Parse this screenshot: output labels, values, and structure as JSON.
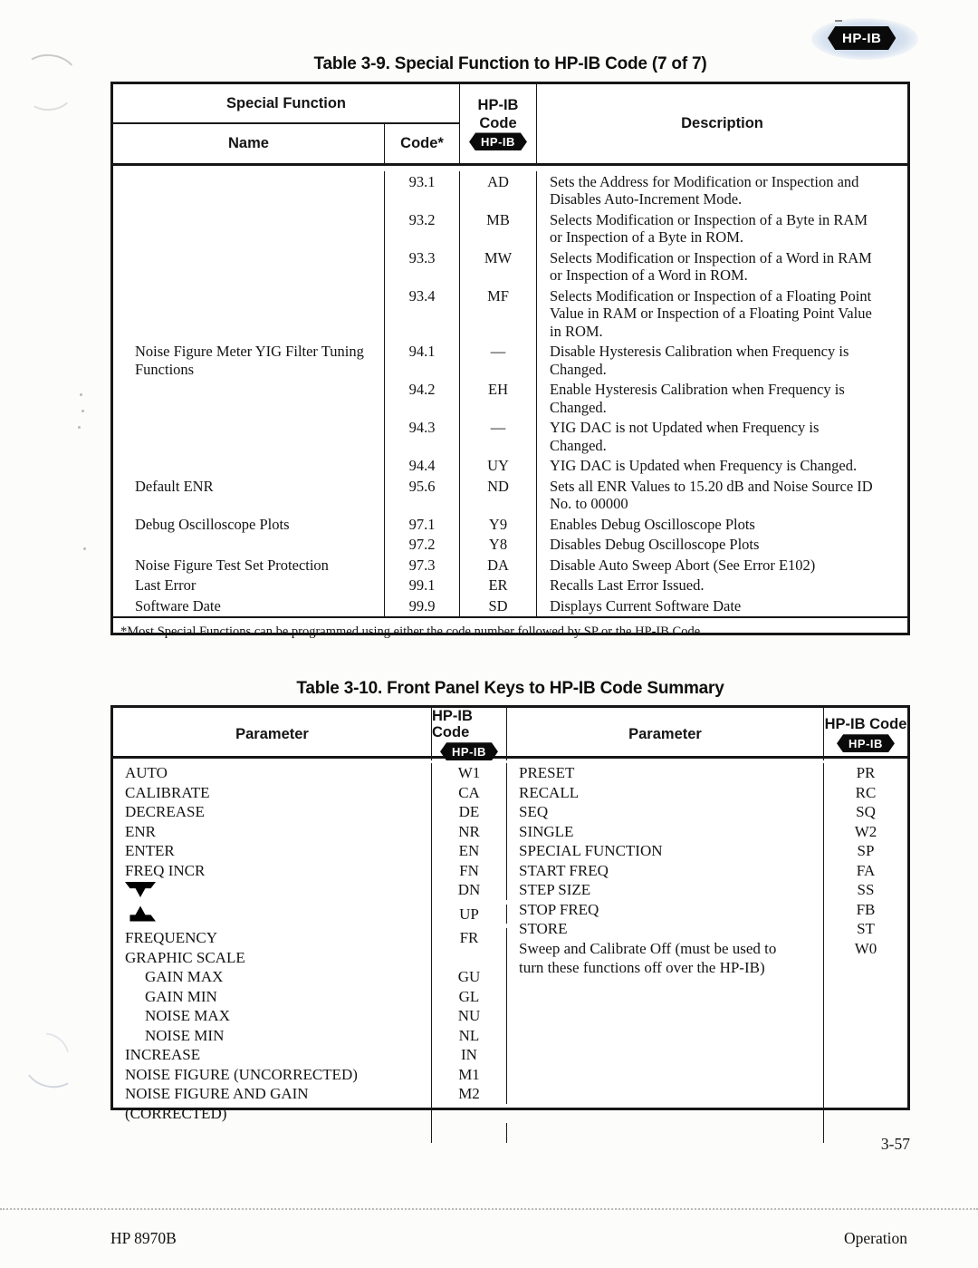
{
  "page": {
    "corner_badge_label": "HP-IB",
    "page_number": "3-57",
    "footer_left": "HP 8970B",
    "footer_right": "Operation"
  },
  "table_3_9": {
    "title": "Table 3-9.  Special Function to HP-IB Code (7 of 7)",
    "headers": {
      "special_function": "Special Function",
      "name": "Name",
      "code": "Code*",
      "hpib_line1": "HP-IB",
      "hpib_line2": "Code",
      "hpib_badge_label": "HP-IB",
      "description": "Description"
    },
    "rows": [
      {
        "name": "",
        "code": "93.1",
        "hpib_code": "AD",
        "description": "Sets the Address for Modification or Inspection and Disables Auto-Increment Mode."
      },
      {
        "name": "",
        "code": "93.2",
        "hpib_code": "MB",
        "description": "Selects Modification or Inspection of a Byte in RAM or Inspection of a Byte in ROM."
      },
      {
        "name": "",
        "code": "93.3",
        "hpib_code": "MW",
        "description": "Selects Modification or Inspection of a Word in RAM or Inspection of a Word in ROM."
      },
      {
        "name": "",
        "code": "93.4",
        "hpib_code": "MF",
        "description": "Selects Modification or Inspection of a Floating Point Value in RAM or Inspection of a Floating Point Value in ROM."
      },
      {
        "name": "Noise Figure Meter YIG Filter Tuning Functions",
        "code": "94.1",
        "hpib_code": "—",
        "description": "Disable Hysteresis Calibration when Frequency is Changed."
      },
      {
        "name": "",
        "code": "94.2",
        "hpib_code": "EH",
        "description": "Enable Hysteresis Calibration when Frequency is Changed."
      },
      {
        "name": "",
        "code": "94.3",
        "hpib_code": "—",
        "description": "YIG DAC is not Updated when Frequency is Changed."
      },
      {
        "name": "",
        "code": "94.4",
        "hpib_code": "UY",
        "description": "YIG DAC is Updated when Frequency is Changed."
      },
      {
        "name": "Default ENR",
        "code": "95.6",
        "hpib_code": "ND",
        "description": "Sets all ENR Values to 15.20 dB and Noise Source ID No. to 00000"
      },
      {
        "name": "Debug Oscilloscope Plots",
        "code": "97.1",
        "hpib_code": "Y9",
        "description": "Enables Debug Oscilloscope Plots"
      },
      {
        "name": "",
        "code": "97.2",
        "hpib_code": "Y8",
        "description": "Disables Debug Oscilloscope Plots"
      },
      {
        "name": "Noise Figure Test Set Protection",
        "code": "97.3",
        "hpib_code": "DA",
        "description": "Disable Auto Sweep Abort (See Error E102)"
      },
      {
        "name": "Last Error",
        "code": "99.1",
        "hpib_code": "ER",
        "description": "Recalls Last Error Issued."
      },
      {
        "name": "Software Date",
        "code": "99.9",
        "hpib_code": "SD",
        "description": "Displays Current Software Date"
      }
    ],
    "footnote": "*Most Special Functions can be programmed using either the code number followed by SP or the HP-IB Code."
  },
  "table_3_10": {
    "title": "Table 3-10.  Front Panel Keys to HP-IB Code Summary",
    "headers": {
      "parameter": "Parameter",
      "hpib_code": "HP-IB Code",
      "badge_label": "HP-IB"
    },
    "left_rows": [
      {
        "label": "AUTO",
        "code": "W1"
      },
      {
        "label": "CALIBRATE",
        "code": "CA"
      },
      {
        "label": "DECREASE",
        "code": "DE"
      },
      {
        "label": "ENR",
        "code": "NR"
      },
      {
        "label": "ENTER",
        "code": "EN"
      },
      {
        "label": "FREQ INCR",
        "code": "FN"
      },
      {
        "label": "",
        "icon": "down-arrow-icon",
        "code": "DN"
      },
      {
        "label": "",
        "icon": "up-arrow-icon",
        "code": "UP"
      },
      {
        "label": "FREQUENCY",
        "code": "FR"
      },
      {
        "label": "GRAPHIC SCALE",
        "code": ""
      },
      {
        "label": "GAIN MAX",
        "code": "GU",
        "indent": true
      },
      {
        "label": "GAIN MIN",
        "code": "GL",
        "indent": true
      },
      {
        "label": "NOISE MAX",
        "code": "NU",
        "indent": true
      },
      {
        "label": "NOISE MIN",
        "code": "NL",
        "indent": true
      },
      {
        "label": "INCREASE",
        "code": "IN"
      },
      {
        "label": "NOISE FIGURE (UNCORRECTED)",
        "code": "M1"
      },
      {
        "label": "NOISE FIGURE AND GAIN\n(CORRECTED)",
        "code": "M2"
      }
    ],
    "right_rows": [
      {
        "label": "PRESET",
        "code": "PR"
      },
      {
        "label": "RECALL",
        "code": "RC"
      },
      {
        "label": "SEQ",
        "code": "SQ"
      },
      {
        "label": "SINGLE",
        "code": "W2"
      },
      {
        "label": "SPECIAL FUNCTION",
        "code": "SP"
      },
      {
        "label": "START FREQ",
        "code": "FA"
      },
      {
        "label": "STEP SIZE",
        "code": "SS"
      },
      {
        "label": "STOP FREQ",
        "code": "FB"
      },
      {
        "label": "STORE",
        "code": "ST"
      },
      {
        "label": "Sweep and Calibrate Off (must be used to\nturn these functions off over the HP-IB)",
        "code": "W0"
      }
    ]
  }
}
